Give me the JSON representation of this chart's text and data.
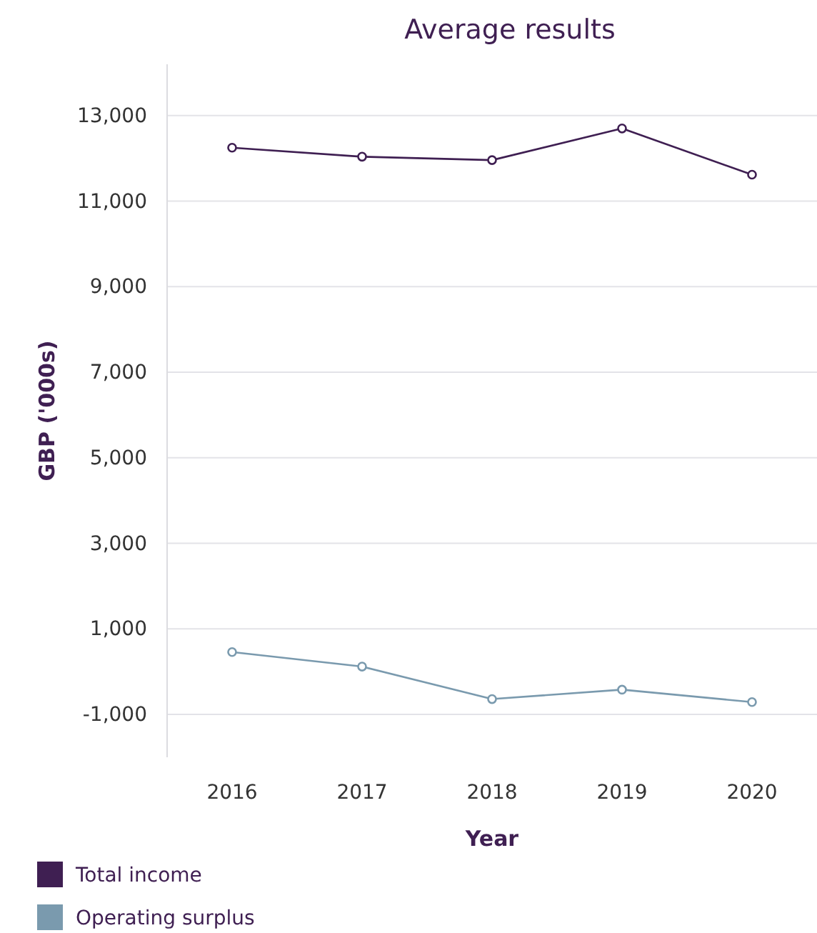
{
  "chart_data": {
    "type": "line",
    "title": "Average results",
    "xlabel": "Year",
    "ylabel": "GBP ('000s)",
    "categories": [
      "2016",
      "2017",
      "2018",
      "2019",
      "2020"
    ],
    "series": [
      {
        "name": "Total income",
        "color": "#3f1f52",
        "values": [
          12250,
          12040,
          11960,
          12700,
          11620
        ]
      },
      {
        "name": "Operating surplus",
        "color": "#7a9aae",
        "values": [
          460,
          120,
          -640,
          -420,
          -710
        ]
      }
    ],
    "ylim": [
      -2000,
      14200
    ],
    "yticks": [
      {
        "value": -1000,
        "label": "-1,000"
      },
      {
        "value": 1000,
        "label": "1,000"
      },
      {
        "value": 3000,
        "label": "3,000"
      },
      {
        "value": 5000,
        "label": "5,000"
      },
      {
        "value": 7000,
        "label": "7,000"
      },
      {
        "value": 9000,
        "label": "9,000"
      },
      {
        "value": 11000,
        "label": "11,000"
      },
      {
        "value": 13000,
        "label": "13,000"
      }
    ],
    "grid": "y",
    "legend": "bottom left",
    "marker": "circle",
    "line_style": "solid"
  }
}
